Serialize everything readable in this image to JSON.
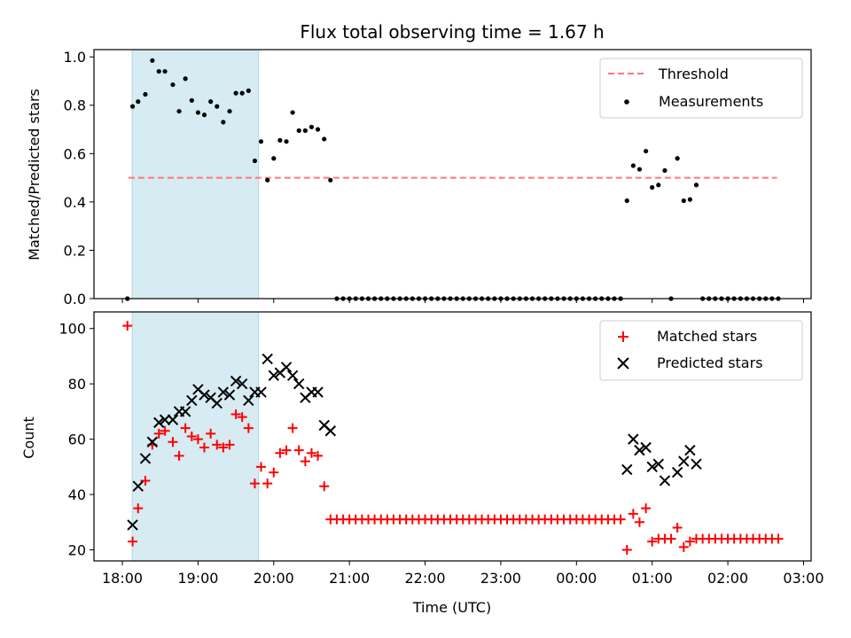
{
  "chart_data": {
    "type": "scatter",
    "title": "Flux total observing time = 1.67 h",
    "xlabel": "Time (UTC)",
    "x_unit": "hours since 18:00 UTC",
    "xlim": [
      -0.375,
      9.1
    ],
    "x_ticks": [
      {
        "value": 0,
        "label": "18:00"
      },
      {
        "value": 1,
        "label": "19:00"
      },
      {
        "value": 2,
        "label": "20:00"
      },
      {
        "value": 3,
        "label": "21:00"
      },
      {
        "value": 4,
        "label": "22:00"
      },
      {
        "value": 5,
        "label": "23:00"
      },
      {
        "value": 6,
        "label": "00:00"
      },
      {
        "value": 7,
        "label": "01:00"
      },
      {
        "value": 8,
        "label": "02:00"
      },
      {
        "value": 9,
        "label": "03:00"
      }
    ],
    "observing_window": [
      0.13,
      1.8
    ],
    "top": {
      "ylabel": "Matched/Predicted stars",
      "ylim": [
        0,
        1.03
      ],
      "y_ticks": [
        {
          "value": 0.0,
          "label": "0.0"
        },
        {
          "value": 0.2,
          "label": "0.2"
        },
        {
          "value": 0.4,
          "label": "0.4"
        },
        {
          "value": 0.6,
          "label": "0.6"
        },
        {
          "value": 0.8,
          "label": "0.8"
        },
        {
          "value": 1.0,
          "label": "1.0"
        }
      ],
      "threshold": {
        "name": "Threshold",
        "value": 0.5,
        "x_range": [
          0.08,
          8.65
        ],
        "color": "#ff7777"
      },
      "measurements": {
        "name": "Measurements",
        "color": "#000000",
        "points": [
          [
            0.067,
            0.0
          ],
          [
            0.135,
            0.795
          ],
          [
            0.208,
            0.815
          ],
          [
            0.304,
            0.845
          ],
          [
            0.396,
            0.985
          ],
          [
            0.483,
            0.94
          ],
          [
            0.563,
            0.94
          ],
          [
            0.667,
            0.885
          ],
          [
            0.75,
            0.775
          ],
          [
            0.833,
            0.91
          ],
          [
            0.917,
            0.82
          ],
          [
            1.0,
            0.77
          ],
          [
            1.083,
            0.76
          ],
          [
            1.167,
            0.815
          ],
          [
            1.25,
            0.795
          ],
          [
            1.333,
            0.73
          ],
          [
            1.417,
            0.775
          ],
          [
            1.5,
            0.85
          ],
          [
            1.583,
            0.85
          ],
          [
            1.667,
            0.86
          ],
          [
            1.75,
            0.57
          ],
          [
            1.833,
            0.65
          ],
          [
            1.917,
            0.49
          ],
          [
            2.0,
            0.58
          ],
          [
            2.083,
            0.655
          ],
          [
            2.167,
            0.65
          ],
          [
            2.25,
            0.77
          ],
          [
            2.333,
            0.695
          ],
          [
            2.417,
            0.695
          ],
          [
            2.5,
            0.71
          ],
          [
            2.583,
            0.7
          ],
          [
            2.667,
            0.66
          ],
          [
            2.75,
            0.49
          ],
          [
            2.833,
            0.0
          ],
          [
            2.917,
            0.0
          ],
          [
            3.0,
            0.0
          ],
          [
            3.083,
            0.0
          ],
          [
            3.167,
            0.0
          ],
          [
            3.25,
            0.0
          ],
          [
            3.333,
            0.0
          ],
          [
            3.417,
            0.0
          ],
          [
            3.5,
            0.0
          ],
          [
            3.583,
            0.0
          ],
          [
            3.667,
            0.0
          ],
          [
            3.75,
            0.0
          ],
          [
            3.833,
            0.0
          ],
          [
            3.917,
            0.0
          ],
          [
            4.0,
            0.0
          ],
          [
            4.083,
            0.0
          ],
          [
            4.167,
            0.0
          ],
          [
            4.25,
            0.0
          ],
          [
            4.333,
            0.0
          ],
          [
            4.417,
            0.0
          ],
          [
            4.5,
            0.0
          ],
          [
            4.583,
            0.0
          ],
          [
            4.667,
            0.0
          ],
          [
            4.75,
            0.0
          ],
          [
            4.833,
            0.0
          ],
          [
            4.917,
            0.0
          ],
          [
            5.0,
            0.0
          ],
          [
            5.083,
            0.0
          ],
          [
            5.167,
            0.0
          ],
          [
            5.25,
            0.0
          ],
          [
            5.333,
            0.0
          ],
          [
            5.417,
            0.0
          ],
          [
            5.5,
            0.0
          ],
          [
            5.583,
            0.0
          ],
          [
            5.667,
            0.0
          ],
          [
            5.75,
            0.0
          ],
          [
            5.833,
            0.0
          ],
          [
            5.917,
            0.0
          ],
          [
            6.0,
            0.0
          ],
          [
            6.083,
            0.0
          ],
          [
            6.167,
            0.0
          ],
          [
            6.25,
            0.0
          ],
          [
            6.333,
            0.0
          ],
          [
            6.417,
            0.0
          ],
          [
            6.5,
            0.0
          ],
          [
            6.583,
            0.0
          ],
          [
            6.667,
            0.405
          ],
          [
            6.75,
            0.55
          ],
          [
            6.833,
            0.535
          ],
          [
            6.917,
            0.61
          ],
          [
            7.0,
            0.46
          ],
          [
            7.083,
            0.47
          ],
          [
            7.167,
            0.53
          ],
          [
            7.25,
            0.0
          ],
          [
            7.333,
            0.58
          ],
          [
            7.417,
            0.405
          ],
          [
            7.5,
            0.41
          ],
          [
            7.583,
            0.47
          ],
          [
            7.667,
            0.0
          ],
          [
            7.75,
            0.0
          ],
          [
            7.833,
            0.0
          ],
          [
            7.917,
            0.0
          ],
          [
            8.0,
            0.0
          ],
          [
            8.083,
            0.0
          ],
          [
            8.167,
            0.0
          ],
          [
            8.25,
            0.0
          ],
          [
            8.333,
            0.0
          ],
          [
            8.417,
            0.0
          ],
          [
            8.5,
            0.0
          ],
          [
            8.583,
            0.0
          ],
          [
            8.667,
            0.0
          ]
        ]
      },
      "legend": [
        "Threshold",
        "Measurements"
      ]
    },
    "bottom": {
      "ylabel": "Count",
      "ylim": [
        16,
        106
      ],
      "y_ticks": [
        {
          "value": 20,
          "label": "20"
        },
        {
          "value": 40,
          "label": "40"
        },
        {
          "value": 60,
          "label": "60"
        },
        {
          "value": 80,
          "label": "80"
        },
        {
          "value": 100,
          "label": "100"
        }
      ],
      "series": [
        {
          "name": "Matched stars",
          "marker": "plus",
          "color": "#ff0000",
          "points": [
            [
              0.067,
              101
            ],
            [
              0.135,
              23
            ],
            [
              0.208,
              35
            ],
            [
              0.304,
              45
            ],
            [
              0.396,
              58
            ],
            [
              0.483,
              62
            ],
            [
              0.563,
              63
            ],
            [
              0.667,
              59
            ],
            [
              0.75,
              54
            ],
            [
              0.833,
              64
            ],
            [
              0.917,
              61
            ],
            [
              1.0,
              60
            ],
            [
              1.083,
              57
            ],
            [
              1.167,
              62
            ],
            [
              1.25,
              58
            ],
            [
              1.333,
              57
            ],
            [
              1.417,
              58
            ],
            [
              1.5,
              69
            ],
            [
              1.583,
              68
            ],
            [
              1.667,
              64
            ],
            [
              1.75,
              44
            ],
            [
              1.833,
              50
            ],
            [
              1.917,
              44
            ],
            [
              2.0,
              48
            ],
            [
              2.083,
              55
            ],
            [
              2.167,
              56
            ],
            [
              2.25,
              64
            ],
            [
              2.333,
              56
            ],
            [
              2.417,
              52
            ],
            [
              2.5,
              55
            ],
            [
              2.583,
              54
            ],
            [
              2.667,
              43
            ],
            [
              2.75,
              31
            ],
            [
              2.833,
              31
            ],
            [
              2.917,
              31
            ],
            [
              3.0,
              31
            ],
            [
              3.083,
              31
            ],
            [
              3.167,
              31
            ],
            [
              3.25,
              31
            ],
            [
              3.333,
              31
            ],
            [
              3.417,
              31
            ],
            [
              3.5,
              31
            ],
            [
              3.583,
              31
            ],
            [
              3.667,
              31
            ],
            [
              3.75,
              31
            ],
            [
              3.833,
              31
            ],
            [
              3.917,
              31
            ],
            [
              4.0,
              31
            ],
            [
              4.083,
              31
            ],
            [
              4.167,
              31
            ],
            [
              4.25,
              31
            ],
            [
              4.333,
              31
            ],
            [
              4.417,
              31
            ],
            [
              4.5,
              31
            ],
            [
              4.583,
              31
            ],
            [
              4.667,
              31
            ],
            [
              4.75,
              31
            ],
            [
              4.833,
              31
            ],
            [
              4.917,
              31
            ],
            [
              5.0,
              31
            ],
            [
              5.083,
              31
            ],
            [
              5.167,
              31
            ],
            [
              5.25,
              31
            ],
            [
              5.333,
              31
            ],
            [
              5.417,
              31
            ],
            [
              5.5,
              31
            ],
            [
              5.583,
              31
            ],
            [
              5.667,
              31
            ],
            [
              5.75,
              31
            ],
            [
              5.833,
              31
            ],
            [
              5.917,
              31
            ],
            [
              6.0,
              31
            ],
            [
              6.083,
              31
            ],
            [
              6.167,
              31
            ],
            [
              6.25,
              31
            ],
            [
              6.333,
              31
            ],
            [
              6.417,
              31
            ],
            [
              6.5,
              31
            ],
            [
              6.583,
              31
            ],
            [
              6.667,
              20
            ],
            [
              6.75,
              33
            ],
            [
              6.833,
              30
            ],
            [
              6.917,
              35
            ],
            [
              7.0,
              23
            ],
            [
              7.083,
              24
            ],
            [
              7.167,
              24
            ],
            [
              7.25,
              24
            ],
            [
              7.333,
              28
            ],
            [
              7.417,
              21
            ],
            [
              7.5,
              23
            ],
            [
              7.583,
              24
            ],
            [
              7.667,
              24
            ],
            [
              7.75,
              24
            ],
            [
              7.833,
              24
            ],
            [
              7.917,
              24
            ],
            [
              8.0,
              24
            ],
            [
              8.083,
              24
            ],
            [
              8.167,
              24
            ],
            [
              8.25,
              24
            ],
            [
              8.333,
              24
            ],
            [
              8.417,
              24
            ],
            [
              8.5,
              24
            ],
            [
              8.583,
              24
            ],
            [
              8.667,
              24
            ]
          ]
        },
        {
          "name": "Predicted stars",
          "marker": "x",
          "color": "#000000",
          "points": [
            [
              0.135,
              29
            ],
            [
              0.208,
              43
            ],
            [
              0.304,
              53
            ],
            [
              0.396,
              59
            ],
            [
              0.483,
              66
            ],
            [
              0.563,
              67
            ],
            [
              0.667,
              67
            ],
            [
              0.75,
              70
            ],
            [
              0.833,
              70
            ],
            [
              0.917,
              74
            ],
            [
              1.0,
              78
            ],
            [
              1.083,
              76
            ],
            [
              1.167,
              75
            ],
            [
              1.25,
              73
            ],
            [
              1.333,
              77
            ],
            [
              1.417,
              76
            ],
            [
              1.5,
              81
            ],
            [
              1.583,
              80
            ],
            [
              1.667,
              74
            ],
            [
              1.75,
              77
            ],
            [
              1.833,
              77
            ],
            [
              1.917,
              89
            ],
            [
              2.0,
              83
            ],
            [
              2.083,
              84
            ],
            [
              2.167,
              86
            ],
            [
              2.25,
              83
            ],
            [
              2.333,
              80
            ],
            [
              2.417,
              75
            ],
            [
              2.5,
              77
            ],
            [
              2.583,
              77
            ],
            [
              2.667,
              65
            ],
            [
              2.75,
              63
            ],
            [
              6.667,
              49
            ],
            [
              6.75,
              60
            ],
            [
              6.833,
              56
            ],
            [
              6.917,
              57
            ],
            [
              7.0,
              50
            ],
            [
              7.083,
              51
            ],
            [
              7.167,
              45
            ],
            [
              7.333,
              48
            ],
            [
              7.417,
              52
            ],
            [
              7.5,
              56
            ],
            [
              7.583,
              51
            ]
          ]
        }
      ],
      "legend": [
        "Matched stars",
        "Predicted stars"
      ]
    }
  }
}
